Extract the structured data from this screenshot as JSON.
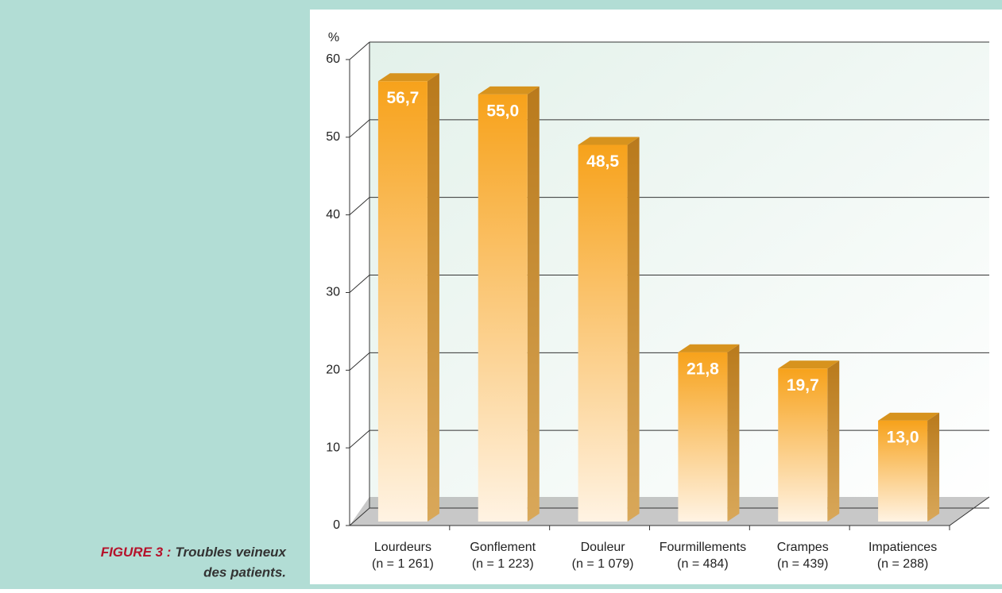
{
  "chart_data": {
    "type": "bar3d",
    "caption_label": "FIGURE 3 :",
    "caption_lines": [
      "Troubles veineux",
      "des patients."
    ],
    "ylabel": "%",
    "categories": [
      "Lourdeurs",
      "Gonflement",
      "Douleur",
      "Fourmillements",
      "Crampes",
      "Impatiences"
    ],
    "category_counts": [
      "(n = 1 261)",
      "(n = 1 223)",
      "(n = 1 079)",
      "(n = 484)",
      "(n = 439)",
      "(n = 288)"
    ],
    "values": [
      56.7,
      55.0,
      48.5,
      21.8,
      19.7,
      13.0
    ],
    "value_labels": [
      "56,7",
      "55,0",
      "48,5",
      "21,8",
      "19,7",
      "13,0"
    ],
    "color": "#f7a21b",
    "ylim": [
      0,
      60
    ],
    "yticks": [
      0,
      10,
      20,
      30,
      40,
      50,
      60
    ],
    "grid": true
  }
}
